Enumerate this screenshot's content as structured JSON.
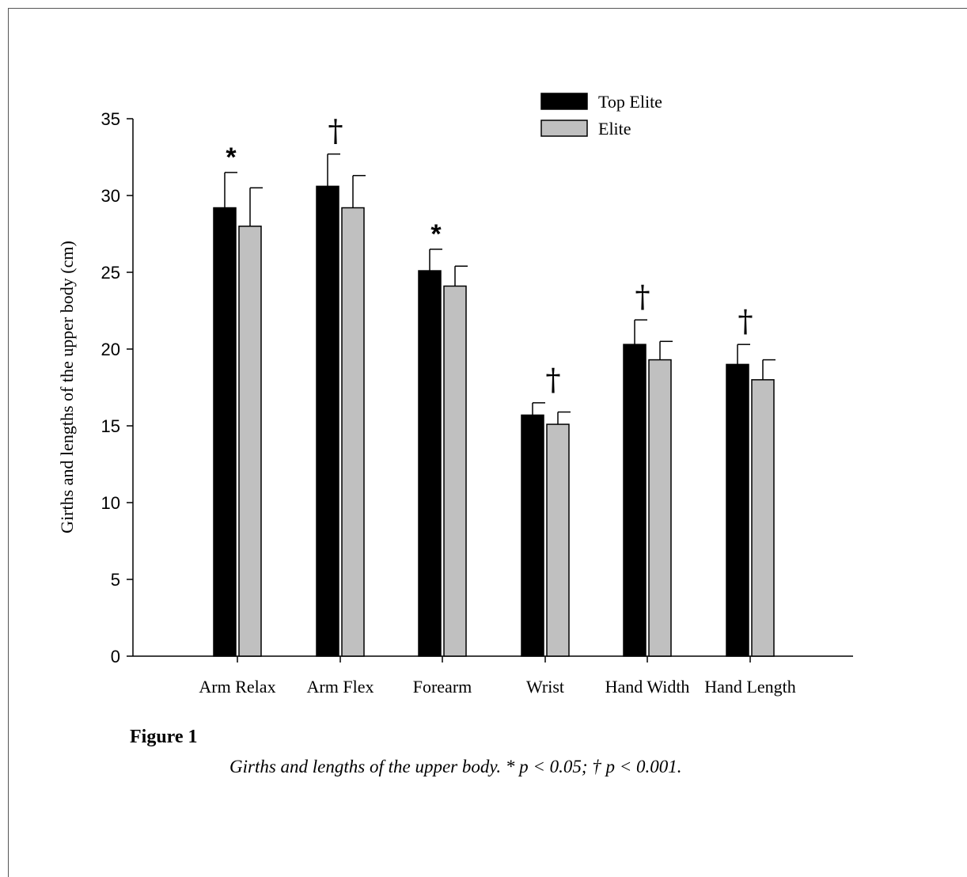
{
  "figure": {
    "label": "Figure 1",
    "caption": "Girths and lengths of the upper body. * p < 0.05; † p < 0.001."
  },
  "chart_data": {
    "type": "bar",
    "ylabel": "Girths and lengths of the upper body  (cm)",
    "xlabel": "",
    "ylim": [
      0,
      35
    ],
    "yticks": [
      0,
      5,
      10,
      15,
      20,
      25,
      30,
      35
    ],
    "categories": [
      "Arm Relax",
      "Arm Flex",
      "Forearm",
      "Wrist",
      "Hand Width",
      "Hand Length"
    ],
    "series": [
      {
        "name": "Top Elite",
        "color": "#000000",
        "values": [
          29.2,
          30.6,
          25.1,
          15.7,
          20.3,
          19.0
        ],
        "errors": [
          2.3,
          2.1,
          1.4,
          0.8,
          1.6,
          1.3
        ]
      },
      {
        "name": "Elite",
        "color": "#c0c0c0",
        "values": [
          28.0,
          29.2,
          24.1,
          15.1,
          19.3,
          18.0
        ],
        "errors": [
          2.5,
          2.1,
          1.3,
          0.8,
          1.2,
          1.3
        ]
      }
    ],
    "significance": [
      "*",
      "†",
      "*",
      "†",
      "†",
      "†"
    ],
    "legend_position": "top-right",
    "grid": false
  }
}
